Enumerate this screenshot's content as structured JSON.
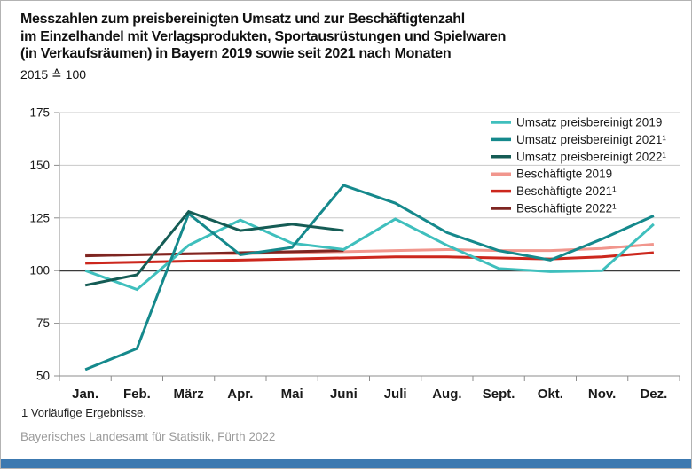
{
  "header": {
    "title_line1": "Messzahlen zum preisbereinigten Umsatz und zur Beschäftigtenzahl",
    "title_line2": "im Einzelhandel mit Verlagsprodukten, Sportausrüstungen und Spielwaren",
    "title_line3": "(in Verkaufsräumen) in Bayern 2019 sowie seit 2021 nach Monaten",
    "subtitle": "2015 ≙ 100"
  },
  "chart_data": {
    "type": "line",
    "title": "Messzahlen zum preisbereinigten Umsatz und zur Beschäftigtenzahl im Einzelhandel mit Verlagsprodukten, Sportausrüstungen und Spielwaren (in Verkaufsräumen) in Bayern 2019 sowie seit 2021 nach Monaten",
    "subtitle": "2015 ≙ 100",
    "xlabel": "",
    "ylabel": "",
    "ylim": [
      50,
      175
    ],
    "yticks": [
      50,
      75,
      100,
      125,
      150,
      175
    ],
    "baseline": 100,
    "grid": true,
    "legend_position": "top-right",
    "categories": [
      "Jan.",
      "Feb.",
      "März",
      "Apr.",
      "Mai",
      "Juni",
      "Juli",
      "Aug.",
      "Sept.",
      "Okt.",
      "Nov.",
      "Dez."
    ],
    "series": [
      {
        "name": "Umsatz preisbereinigt 2019",
        "color": "#3fbfbd",
        "values": [
          100,
          91,
          112,
          124,
          113,
          110,
          124.5,
          112,
          101,
          99.5,
          100,
          122
        ]
      },
      {
        "name": "Umsatz preisbereinigt 2021¹",
        "color": "#15898c",
        "values": [
          53,
          63,
          127,
          107.5,
          111,
          140.5,
          132,
          118,
          109.5,
          105,
          115,
          126
        ]
      },
      {
        "name": "Umsatz preisbereinigt 2022¹",
        "color": "#155c55",
        "values": [
          93,
          98,
          128,
          119,
          122,
          119
        ]
      },
      {
        "name": "Beschäftigte 2019",
        "color": "#f1968d",
        "values": [
          107.5,
          107.5,
          108,
          108,
          108.5,
          109,
          109.5,
          110,
          109.5,
          109.5,
          110.5,
          112.5
        ]
      },
      {
        "name": "Beschäftigte 2021¹",
        "color": "#cc271d",
        "values": [
          103.5,
          104,
          104.5,
          105,
          105.5,
          106,
          106.5,
          106.5,
          106,
          105.5,
          106.5,
          108.5
        ]
      },
      {
        "name": "Beschäftigte 2022¹",
        "color": "#7e2521",
        "values": [
          107,
          107.5,
          108,
          108.5,
          109,
          109.5
        ]
      }
    ]
  },
  "footer": {
    "footnote": "1  Vorläufige Ergebnisse.",
    "source": "Bayerisches Landesamt für Statistik, Fürth 2022"
  },
  "colors": {
    "accent_bar": "#3c79b0",
    "grid": "#c8c8c8",
    "baseline": "#3a3a3a",
    "axis": "#8c8c8c",
    "text": "#1a1a1a"
  }
}
